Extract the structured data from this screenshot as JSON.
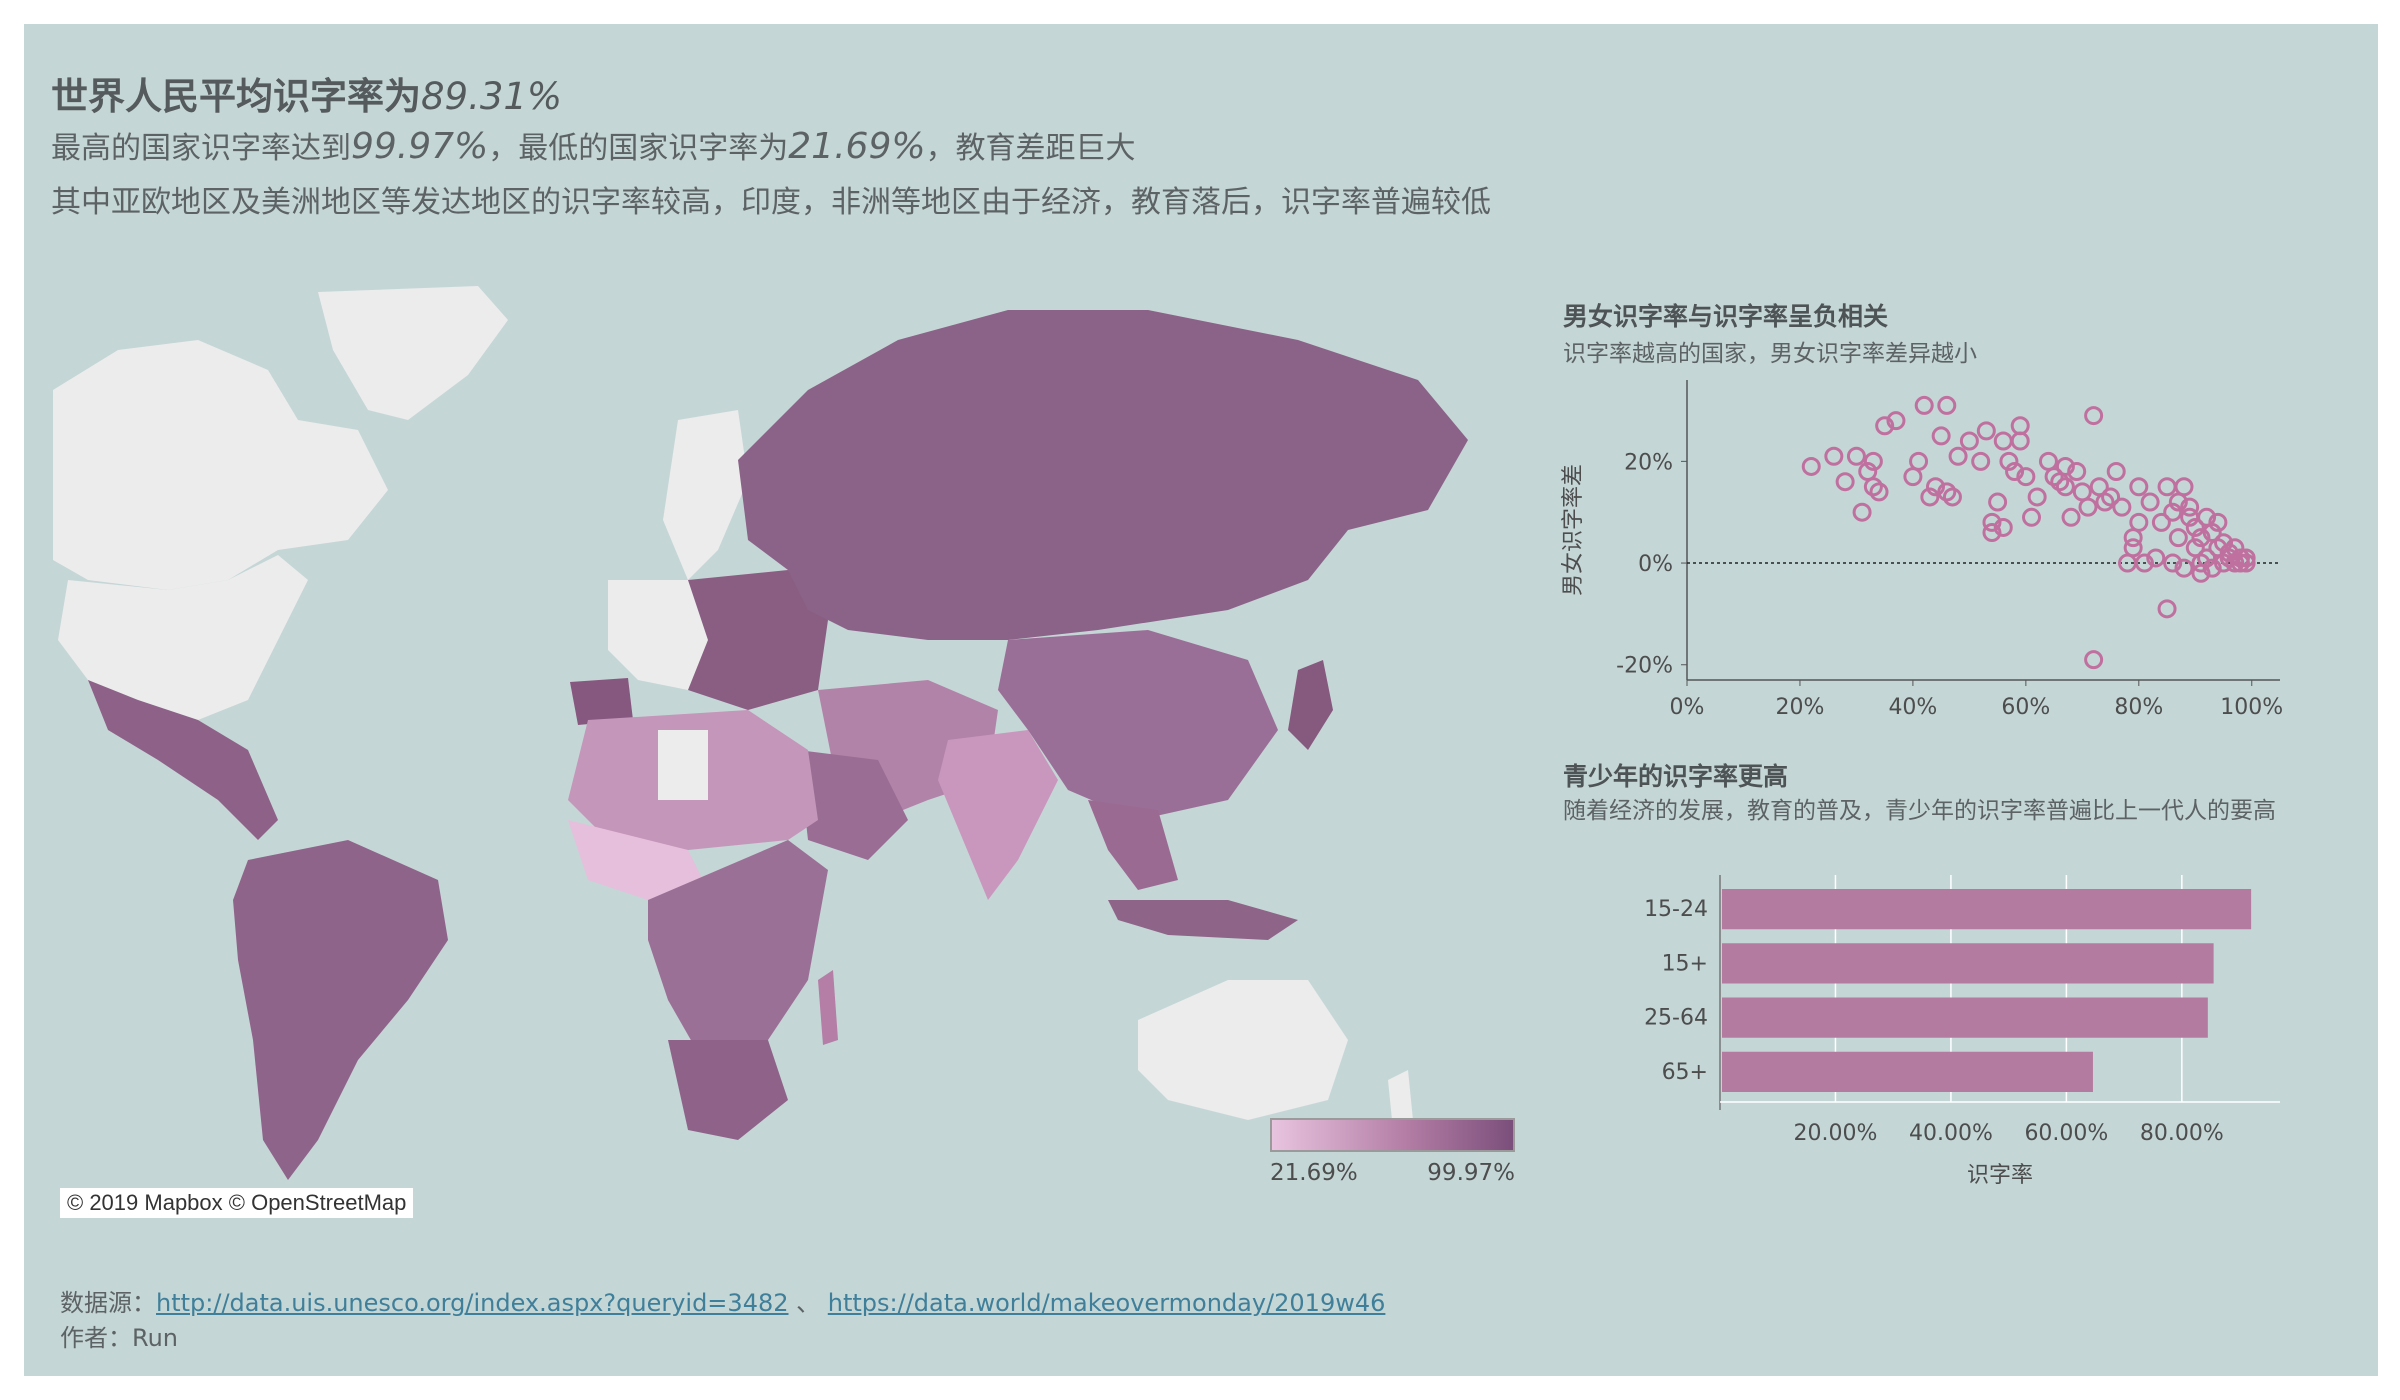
{
  "header": {
    "title_prefix": "世界人民平均识字率为",
    "title_value": "89.31%",
    "sub1_a": "最高的国家识字率达到",
    "sub1_max": "99.97%",
    "sub1_b": "，最低的国家识字率为",
    "sub1_min": "21.69%",
    "sub1_c": "，教育差距巨大",
    "sub2": "其中亚欧地区及美洲地区等发达地区的识字率较高，印度，非洲等地区由于经济，教育落后，识字率普遍较低"
  },
  "map": {
    "credit": "© 2019 Mapbox © OpenStreetMap",
    "legend_min": "21.69%",
    "legend_max": "99.97%",
    "colors": {
      "low": "#e8c4df",
      "mid": "#b47ea6",
      "high": "#7b4f7b",
      "nodata": "#ececec",
      "sea": "#c5d6d6"
    }
  },
  "scatter": {
    "title": "男女识字率与识字率呈负相关",
    "subtitle": "识字率越高的国家，男女识字率差异越小"
  },
  "bars": {
    "title": "青少年的识字率更高",
    "subtitle": "随着经济的发展，教育的普及，青少年的识字率普遍比上一代人的要高"
  },
  "footer": {
    "source_label": "数据源：",
    "link1": "http://data.uis.unesco.org/index.aspx?queryid=3482",
    "sep": " 、 ",
    "link2": "https://data.world/makeovermonday/2019w46",
    "author": "作者：Run"
  },
  "chart_data": [
    {
      "type": "scatter",
      "title": "男女识字率与识字率呈负相关",
      "xlabel": "",
      "ylabel": "男女识字率差",
      "xlim": [
        0,
        105
      ],
      "ylim": [
        -23,
        36
      ],
      "x_ticks": [
        "0%",
        "20%",
        "40%",
        "60%",
        "80%",
        "100%"
      ],
      "y_ticks": [
        "20%",
        "0%",
        "-20%"
      ],
      "reference_line_y": 0,
      "marker_color": "#c0709f",
      "points": [
        [
          22,
          19
        ],
        [
          26,
          21
        ],
        [
          28,
          16
        ],
        [
          30,
          21
        ],
        [
          31,
          10
        ],
        [
          32,
          18
        ],
        [
          33,
          20
        ],
        [
          33,
          15
        ],
        [
          34,
          14
        ],
        [
          35,
          27
        ],
        [
          37,
          28
        ],
        [
          40,
          17
        ],
        [
          41,
          20
        ],
        [
          42,
          31
        ],
        [
          43,
          13
        ],
        [
          44,
          15
        ],
        [
          45,
          25
        ],
        [
          46,
          14
        ],
        [
          46,
          31
        ],
        [
          47,
          13
        ],
        [
          48,
          21
        ],
        [
          50,
          24
        ],
        [
          52,
          20
        ],
        [
          53,
          26
        ],
        [
          54,
          8
        ],
        [
          54,
          6
        ],
        [
          55,
          12
        ],
        [
          56,
          24
        ],
        [
          56,
          7
        ],
        [
          57,
          20
        ],
        [
          58,
          18
        ],
        [
          59,
          27
        ],
        [
          59,
          24
        ],
        [
          60,
          17
        ],
        [
          61,
          9
        ],
        [
          62,
          13
        ],
        [
          64,
          20
        ],
        [
          65,
          17
        ],
        [
          66,
          16
        ],
        [
          67,
          19
        ],
        [
          67,
          15
        ],
        [
          68,
          9
        ],
        [
          69,
          18
        ],
        [
          70,
          14
        ],
        [
          71,
          11
        ],
        [
          72,
          29
        ],
        [
          72,
          -19
        ],
        [
          73,
          15
        ],
        [
          74,
          12
        ],
        [
          75,
          13
        ],
        [
          76,
          18
        ],
        [
          77,
          11
        ],
        [
          78,
          0
        ],
        [
          79,
          5
        ],
        [
          79,
          3
        ],
        [
          80,
          15
        ],
        [
          80,
          8
        ],
        [
          81,
          0
        ],
        [
          82,
          12
        ],
        [
          83,
          1
        ],
        [
          84,
          8
        ],
        [
          85,
          15
        ],
        [
          85,
          -9
        ],
        [
          86,
          10
        ],
        [
          86,
          0
        ],
        [
          87,
          5
        ],
        [
          87,
          12
        ],
        [
          88,
          -1
        ],
        [
          88,
          15
        ],
        [
          89,
          9
        ],
        [
          89,
          11
        ],
        [
          90,
          3
        ],
        [
          90,
          7
        ],
        [
          91,
          0
        ],
        [
          91,
          5
        ],
        [
          91,
          -2
        ],
        [
          92,
          9
        ],
        [
          92,
          1
        ],
        [
          93,
          6
        ],
        [
          93,
          -1
        ],
        [
          94,
          3
        ],
        [
          94,
          8
        ],
        [
          95,
          0
        ],
        [
          95,
          4
        ],
        [
          96,
          2
        ],
        [
          96,
          1
        ],
        [
          97,
          3
        ],
        [
          97,
          0
        ],
        [
          98,
          1
        ],
        [
          98,
          0
        ],
        [
          99,
          0
        ],
        [
          99,
          1
        ]
      ]
    },
    {
      "type": "bar",
      "orientation": "horizontal",
      "title": "青少年的识字率更高",
      "xlabel": "识字率",
      "ylabel": "",
      "categories": [
        "15-24",
        "15+",
        "25-64",
        "65+"
      ],
      "values": [
        92.0,
        85.5,
        84.5,
        64.6
      ],
      "xlim": [
        0,
        97
      ],
      "x_ticks": [
        "20.00%",
        "40.00%",
        "60.00%",
        "80.00%"
      ],
      "bar_color": "#b47ba0"
    }
  ]
}
